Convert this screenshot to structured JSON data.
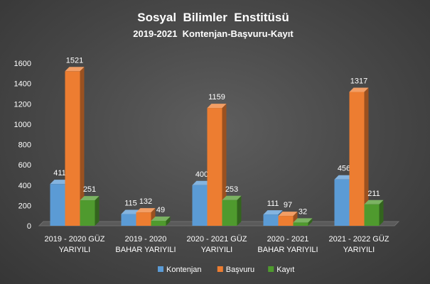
{
  "chart_data": {
    "type": "bar",
    "title": "Sosyal  Bilimler  Enstitüsü",
    "subtitle": "2019-2021  Kontenjan-Başvuru-Kayıt",
    "categories": [
      [
        "2019 - 2020 GÜZ",
        "YARIYILI"
      ],
      [
        "2019 - 2020",
        "BAHAR YARIYILI"
      ],
      [
        "2020 - 2021 GÜZ",
        "YARIYILI"
      ],
      [
        "2020 - 2021",
        "BAHAR YARIYILI"
      ],
      [
        "2021 - 2022 GÜZ",
        "YARIYILI"
      ]
    ],
    "series": [
      {
        "name": "Kontenjan",
        "color": "#5b9bd5",
        "values": [
          411,
          115,
          400,
          111,
          456
        ]
      },
      {
        "name": "Başvuru",
        "color": "#ed7d31",
        "values": [
          1521,
          132,
          1159,
          97,
          1317
        ]
      },
      {
        "name": "Kayıt",
        "color": "#4f9a2e",
        "values": [
          251,
          49,
          253,
          32,
          211
        ]
      }
    ],
    "ylim": [
      0,
      1600
    ],
    "yticks": [
      0,
      200,
      400,
      600,
      800,
      1000,
      1200,
      1400,
      1600
    ],
    "legend": "bottom",
    "grid": false
  }
}
